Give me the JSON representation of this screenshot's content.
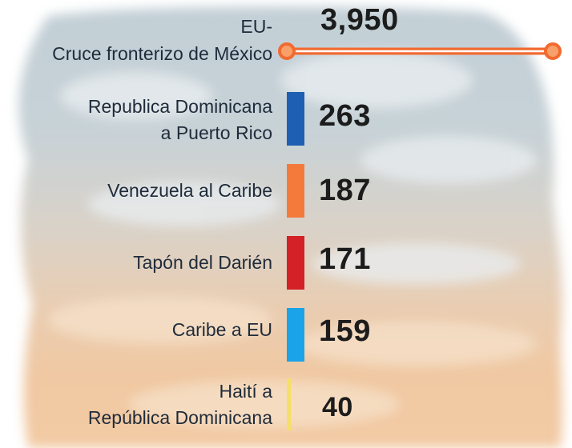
{
  "colors": {
    "top_line": "#f26a30",
    "cap_fill": "#f7a06a"
  },
  "chart_data": {
    "type": "bar",
    "orientation": "horizontal",
    "categories": [
      {
        "line1": "EU-",
        "line2": "Cruce fronterizo de México"
      },
      {
        "line1": "Republica Dominicana",
        "line2": "a Puerto Rico"
      },
      {
        "line1": "Venezuela al Caribe",
        "line2": ""
      },
      {
        "line1": "Tapón del Darién",
        "line2": ""
      },
      {
        "line1": "Caribe a EU",
        "line2": ""
      },
      {
        "line1": "Haití a",
        "line2": "República Dominicana"
      }
    ],
    "values": [
      3950,
      263,
      187,
      171,
      159,
      40
    ],
    "value_labels": [
      "3,950",
      "263",
      "187",
      "171",
      "159",
      "40"
    ],
    "bar_colors": [
      "#f26a30",
      "#1e5fb3",
      "#f47a3c",
      "#d42027",
      "#1aa3e8",
      "#f5df67"
    ],
    "xlim": [
      0,
      3950
    ],
    "title": "",
    "xlabel": "",
    "ylabel": ""
  }
}
